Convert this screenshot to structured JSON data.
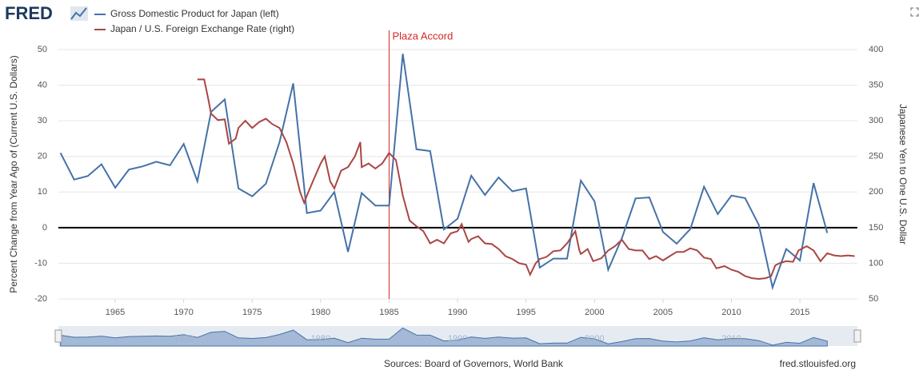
{
  "logo": "FRED",
  "chart_data": {
    "type": "line",
    "y_label": "Percent Change from Year Ago of (Current U.S. Dollars)",
    "y2_label": "Japanese Yen to One U.S. Dollar",
    "xlim": [
      1960.85,
      2019.2
    ],
    "xticks": [
      1965,
      1970,
      1975,
      1980,
      1985,
      1990,
      1995,
      2000,
      2005,
      2010,
      2015
    ],
    "ylim": [
      -20,
      50
    ],
    "yticks": [
      -20,
      -10,
      0,
      10,
      20,
      30,
      40,
      50
    ],
    "y2lim": [
      50,
      400
    ],
    "y2ticks": [
      50,
      100,
      150,
      200,
      250,
      300,
      350,
      400
    ],
    "grid": true,
    "annotation": {
      "text": "Plaza Accord",
      "x": 1985,
      "color": "#d62728"
    },
    "navigator_ticks": [
      1970,
      1980,
      1990,
      2000,
      2010
    ],
    "series": [
      {
        "name": "Gross Domestic Product for Japan (left)",
        "color": "#4572a7",
        "axis": "y",
        "x": [
          1961,
          1962,
          1963,
          1964,
          1965,
          1966,
          1967,
          1968,
          1969,
          1970,
          1971,
          1972,
          1973,
          1974,
          1975,
          1976,
          1977,
          1978,
          1979,
          1980,
          1981,
          1982,
          1983,
          1984,
          1985,
          1986,
          1987,
          1988,
          1989,
          1990,
          1991,
          1992,
          1993,
          1994,
          1995,
          1996,
          1997,
          1998,
          1999,
          2000,
          2001,
          2002,
          2003,
          2004,
          2005,
          2006,
          2007,
          2008,
          2009,
          2010,
          2011,
          2012,
          2013,
          2014,
          2015,
          2016,
          2017
        ],
        "values": [
          21,
          13.5,
          14.5,
          17.8,
          11.2,
          16.3,
          17.2,
          18.5,
          17.5,
          23.5,
          13,
          32.5,
          36,
          11,
          8.8,
          12.3,
          24,
          40.5,
          4.1,
          4.8,
          10,
          -6.8,
          9.7,
          6.2,
          6.2,
          48.8,
          22,
          21.5,
          -0.5,
          2.5,
          14.6,
          9.2,
          14.1,
          10.2,
          11,
          -11.2,
          -8.7,
          -8.7,
          13.2,
          7.4,
          -11.8,
          -3,
          8.2,
          8.5,
          -1.2,
          -4.5,
          -0.4,
          11.5,
          3.8,
          9,
          8.3,
          0.8,
          -16.8,
          -6,
          -9.2,
          12.5,
          -1.5
        ]
      },
      {
        "name": "Japan / U.S. Foreign Exchange Rate (right)",
        "color": "#aa4643",
        "axis": "y2",
        "x": [
          1971,
          1971.5,
          1971.8,
          1972,
          1972.5,
          1973,
          1973.3,
          1973.8,
          1974,
          1974.5,
          1975,
          1975.5,
          1976,
          1976.5,
          1977,
          1977.5,
          1978,
          1978.5,
          1978.8,
          1979,
          1979.5,
          1980,
          1980.3,
          1980.7,
          1981,
          1981.5,
          1982,
          1982.5,
          1982.9,
          1983,
          1983.5,
          1984,
          1984.5,
          1985,
          1985.5,
          1985.8,
          1986,
          1986.5,
          1987,
          1987.5,
          1988,
          1988.5,
          1989,
          1989.5,
          1990,
          1990.3,
          1990.8,
          1991,
          1991.5,
          1992,
          1992.5,
          1993,
          1993.5,
          1994,
          1994.5,
          1995,
          1995.3,
          1995.7,
          1996,
          1996.5,
          1997,
          1997.5,
          1998,
          1998.6,
          1998.9,
          1999,
          1999.5,
          1999.9,
          2000.5,
          2001,
          2001.5,
          2002,
          2002.5,
          2003,
          2003.5,
          2004,
          2004.5,
          2005,
          2005.5,
          2006,
          2006.5,
          2007,
          2007.5,
          2008,
          2008.5,
          2008.9,
          2009.5,
          2010,
          2010.5,
          2011,
          2011.5,
          2012,
          2012.5,
          2012.9,
          2013.2,
          2013.5,
          2014,
          2014.5,
          2014.9,
          2015.5,
          2016,
          2016.5,
          2017,
          2017.5,
          2018,
          2018.5,
          2019
        ],
        "values": [
          358,
          358,
          330,
          310,
          301,
          302,
          268,
          275,
          290,
          300,
          290,
          298,
          303,
          295,
          290,
          270,
          240,
          200,
          185,
          195,
          218,
          240,
          250,
          215,
          205,
          230,
          235,
          250,
          270,
          235,
          240,
          233,
          240,
          255,
          245,
          215,
          195,
          160,
          152,
          145,
          128,
          133,
          128,
          142,
          145,
          155,
          130,
          134,
          138,
          128,
          127,
          120,
          110,
          106,
          100,
          98,
          84,
          100,
          106,
          109,
          117,
          118,
          128,
          145,
          118,
          113,
          120,
          103,
          107,
          118,
          124,
          133,
          120,
          118,
          118,
          106,
          110,
          104,
          110,
          116,
          116,
          121,
          118,
          108,
          106,
          93,
          96,
          91,
          88,
          82,
          79,
          78,
          79,
          82,
          97,
          100,
          103,
          102,
          118,
          124,
          118,
          103,
          114,
          111,
          110,
          111,
          110
        ]
      }
    ],
    "source": "Sources: Board of Governors, World Bank",
    "site": "fred.stlouisfed.org"
  }
}
